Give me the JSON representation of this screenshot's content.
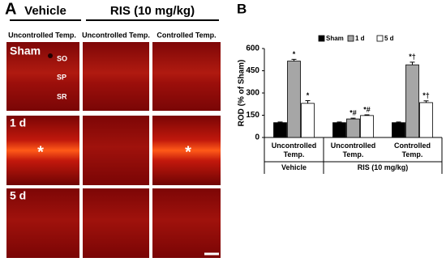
{
  "panel_a": {
    "letter": "A",
    "groups": [
      "Vehicle",
      "RIS (10 mg/kg)"
    ],
    "columns": [
      "Uncontrolled Temp.",
      "Uncontrolled Temp.",
      "Controlled Temp."
    ],
    "rows": [
      "Sham",
      "1 d",
      "5 d"
    ],
    "layers": [
      "SO",
      "SP",
      "SR"
    ],
    "marks": [
      "*",
      "*"
    ]
  },
  "chart_data": {
    "type": "bar",
    "letter": "B",
    "y_label": "ROD (% of  Sham)",
    "categories": [
      "Uncontrolled Temp.",
      "Uncontrolled Temp.",
      "Controlled Temp."
    ],
    "groups": [
      {
        "label": "Vehicle",
        "span": 1
      },
      {
        "label": "RIS (10 mg/kg)",
        "span": 2
      }
    ],
    "series": [
      {
        "name": "Sham",
        "color": "#000000",
        "values": [
          100,
          100,
          100
        ],
        "errors": [
          4,
          4,
          4
        ],
        "markers": [
          null,
          null,
          null
        ]
      },
      {
        "name": "1 d",
        "color": "#a6a6a6",
        "values": [
          515,
          125,
          490
        ],
        "errors": [
          12,
          5,
          18
        ],
        "markers": [
          "*",
          "*#",
          "*†"
        ]
      },
      {
        "name": "5 d",
        "color": "#ffffff",
        "values": [
          230,
          148,
          235
        ],
        "errors": [
          18,
          5,
          12
        ],
        "markers": [
          "*",
          "*#",
          "*†"
        ]
      }
    ],
    "ylim": [
      0,
      600
    ],
    "yticks": [
      0,
      150,
      300,
      450,
      600
    ],
    "grid": false,
    "legend": "top"
  }
}
